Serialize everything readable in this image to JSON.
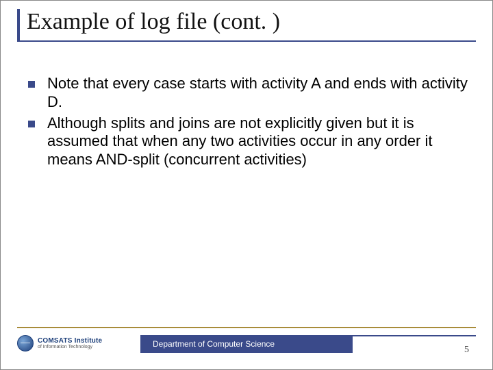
{
  "colors": {
    "accent_blue": "#3a4a8a",
    "accent_gold": "#a88c3a",
    "text": "#000000",
    "title_text": "#111111",
    "background": "#ffffff",
    "logo_gradient_light": "#7aa6d8",
    "logo_gradient_dark": "#1d3f7a"
  },
  "typography": {
    "title_family": "Times New Roman",
    "title_size_pt": 26,
    "body_family": "Arial",
    "body_size_pt": 17,
    "footer_size_pt": 9
  },
  "title": "Example of log file (cont. )",
  "bullets": [
    "Note that every case starts with activity A and ends with activity D.",
    "Although splits and joins are not explicitly given but it is assumed that when any two activities occur in any order it means AND-split (concurrent activities)"
  ],
  "footer": {
    "department": "Department of Computer Science",
    "page_number": "5",
    "logo": {
      "line1": "COMSATS Institute",
      "line2": "of Information Technology"
    }
  }
}
